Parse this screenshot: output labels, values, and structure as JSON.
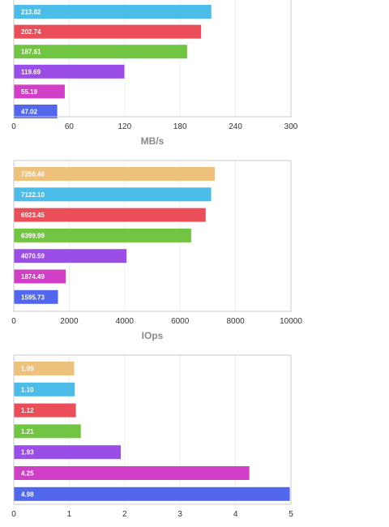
{
  "chart_data": [
    {
      "type": "bar",
      "orientation": "horizontal",
      "values": [
        213.82,
        202.74,
        187.61,
        119.69,
        55.19,
        47.02
      ],
      "value_labels": [
        "213.82",
        "202.74",
        "187.61",
        "119.69",
        "55.19",
        "47.02"
      ],
      "colors": [
        "#4cbce8",
        "#ea4e58",
        "#72c542",
        "#9b4de8",
        "#d03fc6",
        "#5167ee"
      ],
      "xlim": [
        0,
        300
      ],
      "xticks": [
        "0",
        "60",
        "120",
        "180",
        "240",
        "300"
      ],
      "xlabel": "MB/s",
      "grid": true
    },
    {
      "type": "bar",
      "orientation": "horizontal",
      "values": [
        7250.46,
        7122.1,
        6923.45,
        6399.99,
        4070.59,
        1874.49,
        1595.73
      ],
      "value_labels": [
        "7250.46",
        "7122.10",
        "6923.45",
        "6399.99",
        "4070.59",
        "1874.49",
        "1595.73"
      ],
      "colors": [
        "#eec27c",
        "#4cbce8",
        "#ea4e58",
        "#72c542",
        "#9b4de8",
        "#d03fc6",
        "#5167ee"
      ],
      "xlim": [
        0,
        10000
      ],
      "xticks": [
        "0",
        "2000",
        "4000",
        "6000",
        "8000",
        "10000"
      ],
      "xlabel": "IOps",
      "grid": true
    },
    {
      "type": "bar",
      "orientation": "horizontal",
      "values": [
        1.09,
        1.1,
        1.12,
        1.21,
        1.93,
        4.25,
        4.98
      ],
      "value_labels": [
        "1.09",
        "1.10",
        "1.12",
        "1.21",
        "1.93",
        "4.25",
        "4.98"
      ],
      "colors": [
        "#eec27c",
        "#4cbce8",
        "#ea4e58",
        "#72c542",
        "#9b4de8",
        "#d03fc6",
        "#5167ee"
      ],
      "xlim": [
        0,
        5
      ],
      "xticks": [
        "0",
        "1",
        "2",
        "3",
        "4",
        "5"
      ],
      "xlabel": "",
      "grid": true
    }
  ]
}
